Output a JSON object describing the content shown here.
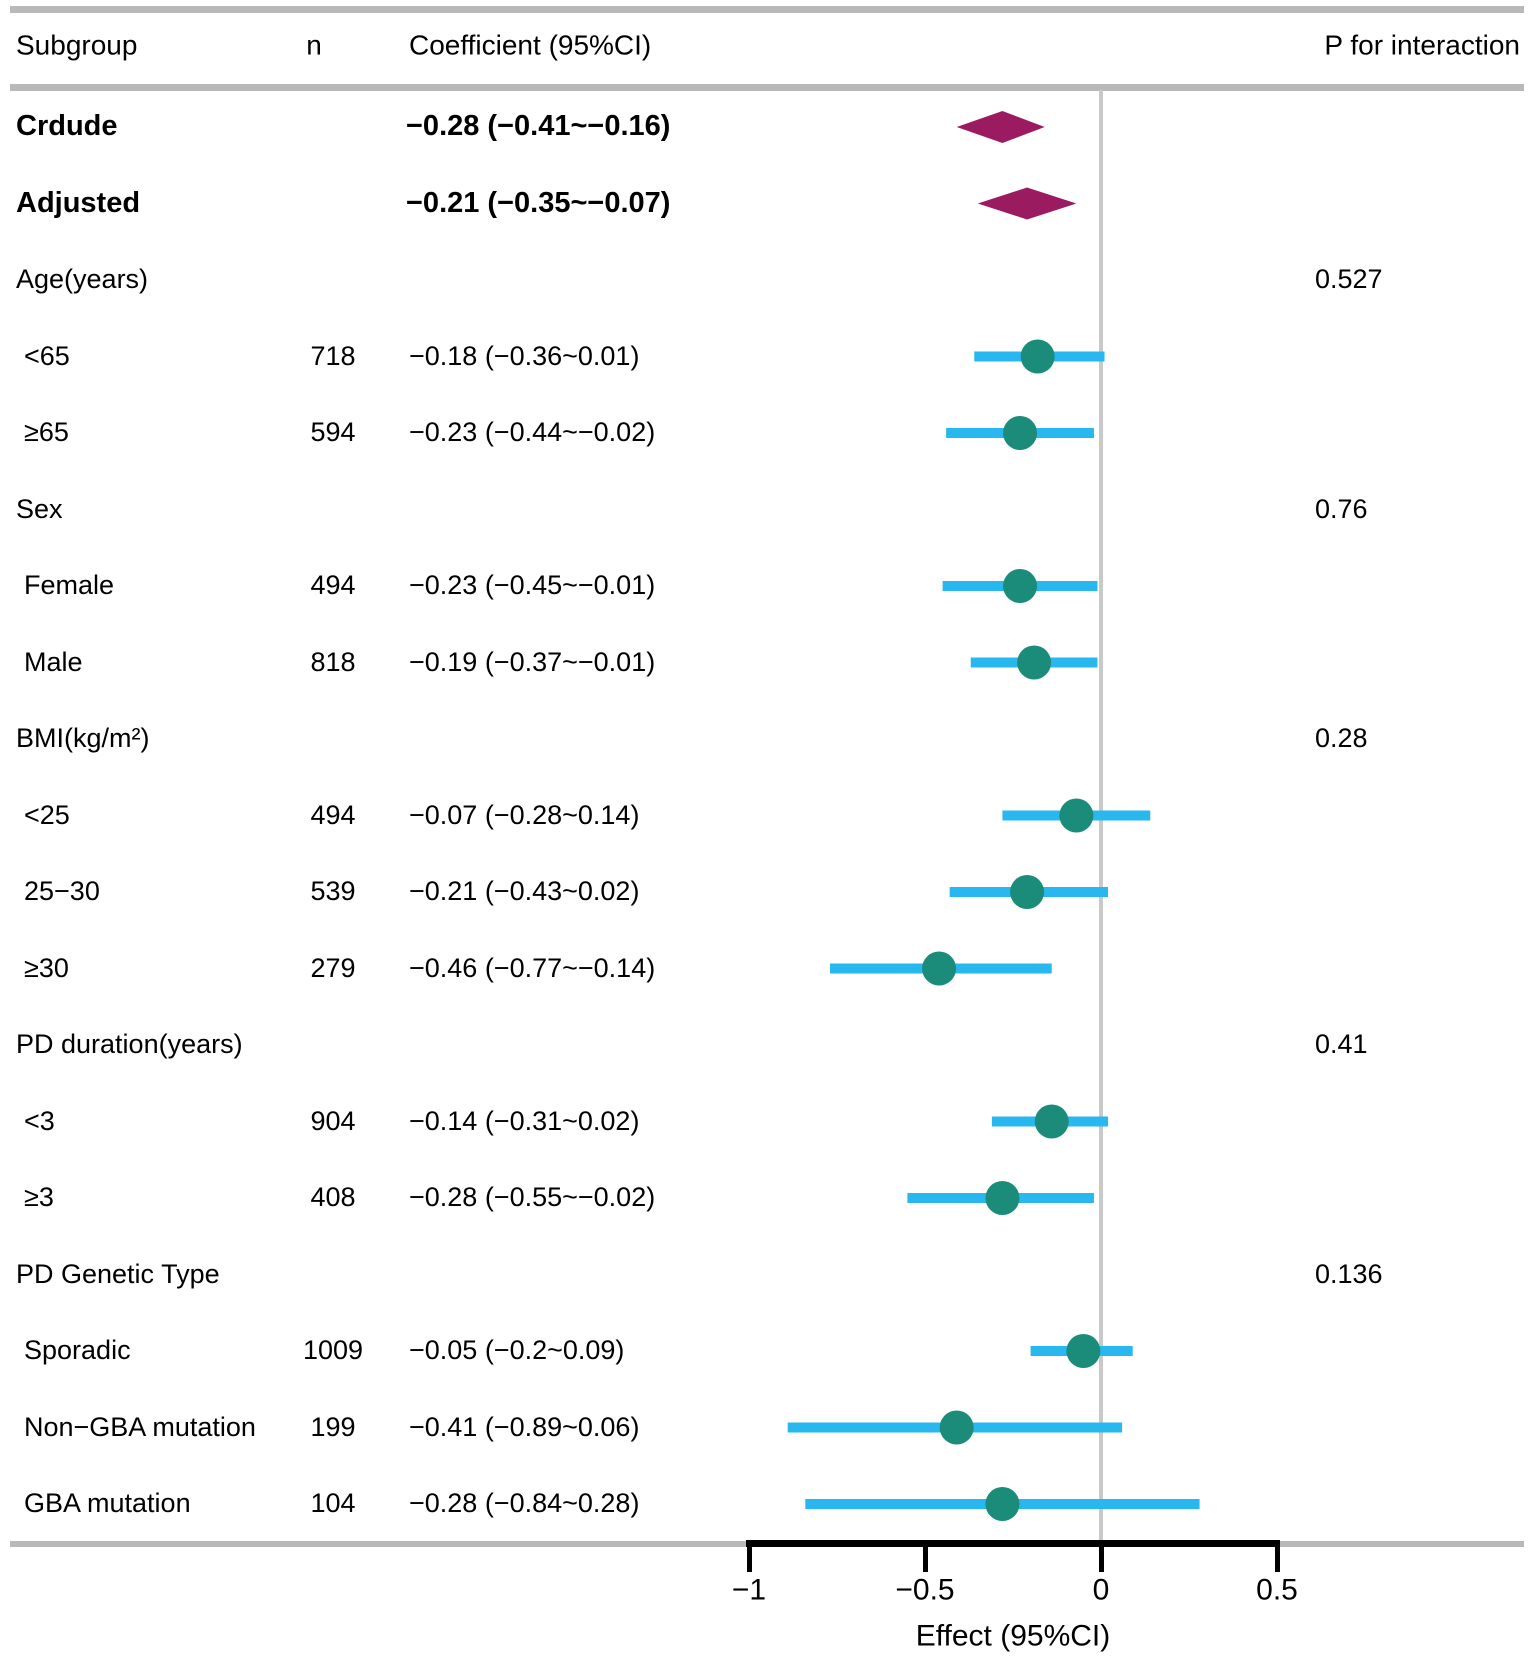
{
  "header": {
    "subgroup": "Subgroup",
    "n": "n",
    "coefficient": "Coefficient (95%CI)",
    "p_interaction": "P for interaction"
  },
  "axis": {
    "label": "Effect (95%CI)",
    "ticks": [
      {
        "value": -1,
        "label": "−1"
      },
      {
        "value": -0.5,
        "label": "−0.5"
      },
      {
        "value": 0,
        "label": "0"
      },
      {
        "value": 0.5,
        "label": "0.5"
      }
    ],
    "reference_value": 0
  },
  "colors": {
    "summary_diamond": "#9B1B60",
    "point": "#1B8B7A",
    "ci_line": "#29B7EF",
    "rule": "#B9B9B9",
    "reference_line": "#C9C9C9",
    "axis": "#000000"
  },
  "chart_data": {
    "type": "forest",
    "xlabel": "Effect (95%CI)",
    "xlim": [
      -1.1,
      0.6
    ],
    "legend": "none",
    "rows": [
      {
        "label": "Crdude",
        "kind": "summary",
        "coef_text": "−0.28 (−0.41~−0.16)",
        "est": -0.28,
        "lo": -0.41,
        "hi": -0.16
      },
      {
        "label": "Adjusted",
        "kind": "summary",
        "coef_text": "−0.21 (−0.35~−0.07)",
        "est": -0.21,
        "lo": -0.35,
        "hi": -0.07
      },
      {
        "label": "Age(years)",
        "kind": "group",
        "p": "0.527"
      },
      {
        "label": "<65",
        "kind": "item",
        "n": "718",
        "coef_text": "−0.18 (−0.36~0.01)",
        "est": -0.18,
        "lo": -0.36,
        "hi": 0.01
      },
      {
        "label": "≥65",
        "kind": "item",
        "n": "594",
        "coef_text": "−0.23 (−0.44~−0.02)",
        "est": -0.23,
        "lo": -0.44,
        "hi": -0.02
      },
      {
        "label": "Sex",
        "kind": "group",
        "p": "0.76"
      },
      {
        "label": "Female",
        "kind": "item",
        "n": "494",
        "coef_text": "−0.23 (−0.45~−0.01)",
        "est": -0.23,
        "lo": -0.45,
        "hi": -0.01
      },
      {
        "label": "Male",
        "kind": "item",
        "n": "818",
        "coef_text": "−0.19 (−0.37~−0.01)",
        "est": -0.19,
        "lo": -0.37,
        "hi": -0.01
      },
      {
        "label": "BMI(kg/m²)",
        "kind": "group",
        "p": "0.28"
      },
      {
        "label": "<25",
        "kind": "item",
        "n": "494",
        "coef_text": "−0.07 (−0.28~0.14)",
        "est": -0.07,
        "lo": -0.28,
        "hi": 0.14
      },
      {
        "label": "25−30",
        "kind": "item",
        "n": "539",
        "coef_text": "−0.21 (−0.43~0.02)",
        "est": -0.21,
        "lo": -0.43,
        "hi": 0.02
      },
      {
        "label": "≥30",
        "kind": "item",
        "n": "279",
        "coef_text": "−0.46 (−0.77~−0.14)",
        "est": -0.46,
        "lo": -0.77,
        "hi": -0.14
      },
      {
        "label": "PD duration(years)",
        "kind": "group",
        "p": "0.41"
      },
      {
        "label": "<3",
        "kind": "item",
        "n": "904",
        "coef_text": "−0.14 (−0.31~0.02)",
        "est": -0.14,
        "lo": -0.31,
        "hi": 0.02
      },
      {
        "label": "≥3",
        "kind": "item",
        "n": "408",
        "coef_text": "−0.28 (−0.55~−0.02)",
        "est": -0.28,
        "lo": -0.55,
        "hi": -0.02
      },
      {
        "label": "PD Genetic Type",
        "kind": "group",
        "p": "0.136"
      },
      {
        "label": "Sporadic",
        "kind": "item",
        "n": "1009",
        "coef_text": "−0.05 (−0.2~0.09)",
        "est": -0.05,
        "lo": -0.2,
        "hi": 0.09
      },
      {
        "label": "Non−GBA mutation",
        "kind": "item",
        "n": "199",
        "coef_text": "−0.41 (−0.89~0.06)",
        "est": -0.41,
        "lo": -0.89,
        "hi": 0.06
      },
      {
        "label": "GBA mutation",
        "kind": "item",
        "n": "104",
        "coef_text": "−0.28 (−0.84~0.28)",
        "est": -0.28,
        "lo": -0.84,
        "hi": 0.28
      }
    ]
  }
}
